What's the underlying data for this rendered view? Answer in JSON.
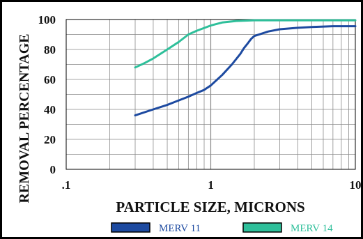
{
  "chart_data": {
    "type": "line",
    "title": "",
    "xlabel": "PARTICLE SIZE, MICRONS",
    "ylabel": "REMOVAL PERCENTAGE",
    "x_scale": "log",
    "xlim": [
      0.1,
      10
    ],
    "ylim": [
      0,
      100
    ],
    "grid": true,
    "legend_position": "bottom",
    "x_tick_labels": [
      ".1",
      "1",
      "10"
    ],
    "y_tick_labels": [
      "0",
      "20",
      "40",
      "60",
      "80",
      "100"
    ],
    "series": [
      {
        "name": "MERV 11",
        "color": "#1d4aa0",
        "x": [
          0.3,
          0.4,
          0.5,
          0.6,
          0.7,
          0.8,
          0.9,
          1.0,
          1.2,
          1.4,
          1.6,
          1.7,
          1.8,
          1.9,
          2.0,
          2.5,
          3.0,
          4.0,
          5.0,
          7.0,
          10.0
        ],
        "y": [
          36,
          40,
          43,
          46,
          48.5,
          51,
          53,
          56,
          63,
          70,
          77,
          81,
          84,
          87,
          89,
          92,
          93.5,
          94.5,
          95,
          95.5,
          95.5
        ]
      },
      {
        "name": "MERV 14",
        "color": "#2ebf9a",
        "x": [
          0.3,
          0.35,
          0.4,
          0.5,
          0.6,
          0.7,
          0.8,
          1.0,
          1.2,
          1.5,
          2.0,
          3.0,
          5.0,
          10.0
        ],
        "y": [
          68,
          71,
          74,
          80,
          85,
          90,
          92.5,
          96,
          98,
          99,
          99.5,
          99.5,
          99.5,
          99.5
        ]
      }
    ]
  }
}
